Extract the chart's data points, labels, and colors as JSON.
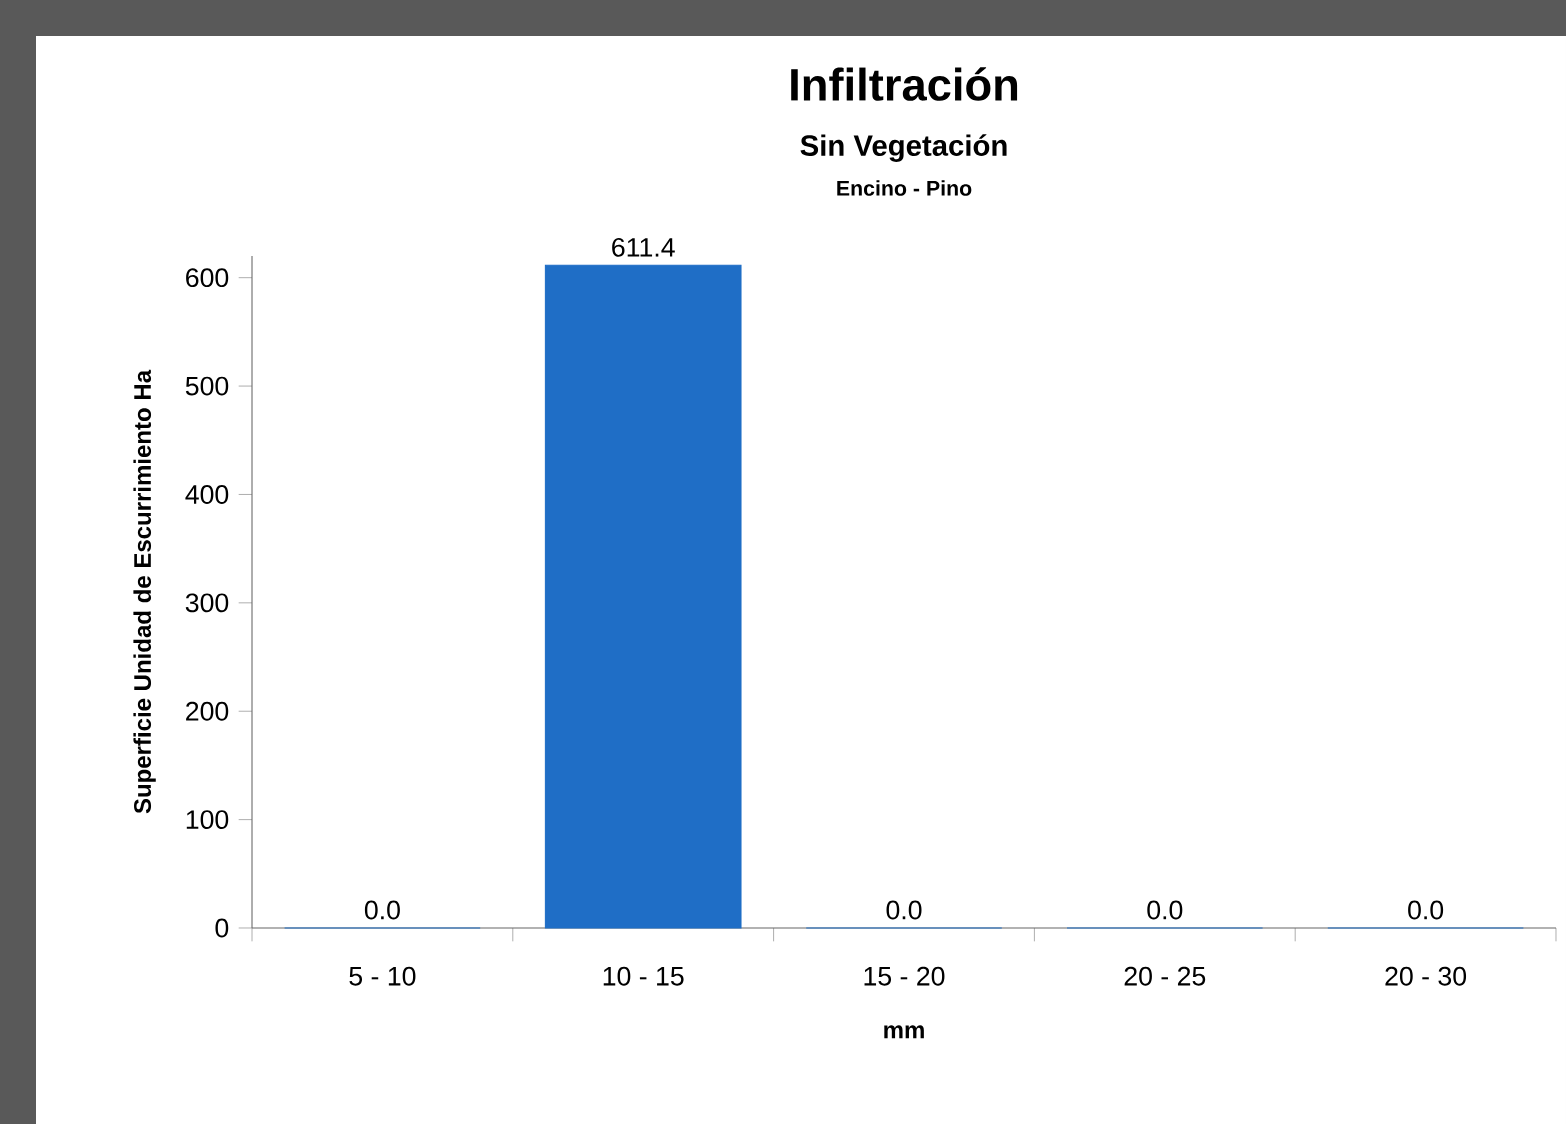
{
  "chart_data": {
    "type": "bar",
    "title": "Infiltración",
    "subtitle": "Sin Vegetación",
    "annotations": [
      "Encino - Pino"
    ],
    "xlabel": "mm",
    "ylabel": "Superficie Unidad de Escurrimiento Ha",
    "categories": [
      "5 - 10",
      "10 - 15",
      "15 - 20",
      "20 - 25",
      "20 - 30"
    ],
    "values": [
      0,
      611.4,
      0,
      0,
      0
    ],
    "value_labels": [
      "0.0",
      "611.4",
      "0.0",
      "0.0",
      "0.0"
    ],
    "color": "#1f6ec6",
    "ylim": [
      0,
      620
    ],
    "yticks": [
      0,
      100,
      200,
      300,
      400,
      500,
      600
    ]
  }
}
